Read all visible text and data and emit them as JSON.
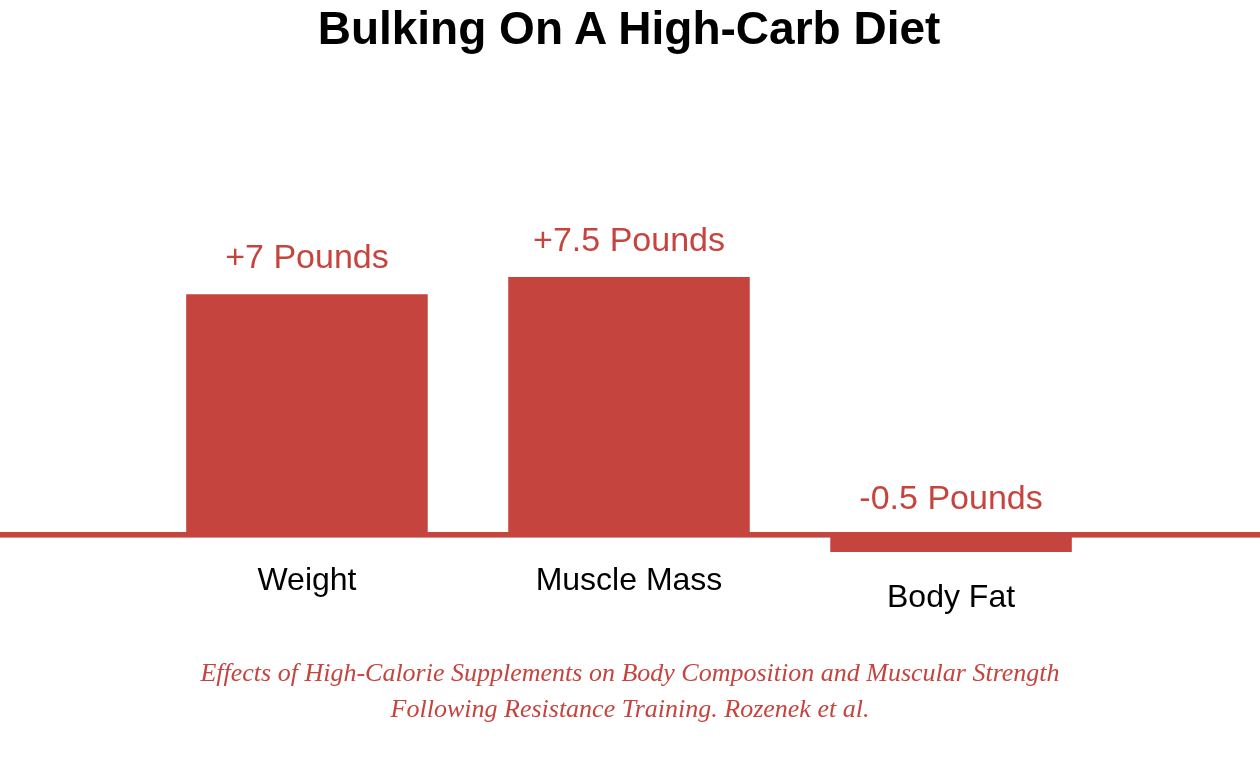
{
  "chart_data": {
    "type": "bar",
    "title": "Bulking On A High-Carb Diet",
    "categories": [
      "Weight",
      "Muscle Mass",
      "Body Fat"
    ],
    "values": [
      7,
      7.5,
      -0.5
    ],
    "value_labels": [
      "+7 Pounds",
      "+7.5 Pounds",
      "-0.5 Pounds"
    ],
    "color": "#c5443e",
    "annotations": [
      "Effects of High-Calorie Supplements on Body Composition and Muscular Strength Following Resistance Training. Rozenek et al."
    ]
  }
}
